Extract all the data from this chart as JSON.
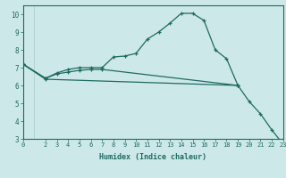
{
  "xlabel": "Humidex (Indice chaleur)",
  "background_color": "#cce8e8",
  "grid_color": "#aacccc",
  "line_color": "#1e6b60",
  "xlim": [
    0,
    23
  ],
  "ylim": [
    3,
    10.5
  ],
  "xticks": [
    0,
    2,
    3,
    4,
    5,
    6,
    7,
    8,
    9,
    10,
    11,
    12,
    13,
    14,
    15,
    16,
    17,
    18,
    19,
    20,
    21,
    22,
    23
  ],
  "yticks": [
    3,
    4,
    5,
    6,
    7,
    8,
    9,
    10
  ],
  "line1_x": [
    0,
    2,
    3,
    4,
    5,
    6,
    7,
    8,
    9,
    10,
    11,
    12,
    13,
    14,
    15,
    16,
    17,
    18,
    19
  ],
  "line1_y": [
    7.2,
    6.4,
    6.7,
    6.9,
    7.0,
    7.0,
    7.0,
    7.6,
    7.65,
    7.8,
    8.6,
    9.0,
    9.5,
    10.05,
    10.05,
    9.65,
    8.0,
    7.5,
    6.0
  ],
  "line2_x": [
    0,
    2,
    3,
    4,
    5,
    6,
    7,
    19
  ],
  "line2_y": [
    7.2,
    6.4,
    6.65,
    6.75,
    6.85,
    6.9,
    6.9,
    6.0
  ],
  "line3_x": [
    0,
    2,
    19,
    20,
    21,
    22,
    23
  ],
  "line3_y": [
    7.2,
    6.35,
    6.0,
    5.1,
    4.4,
    3.5,
    2.7
  ]
}
